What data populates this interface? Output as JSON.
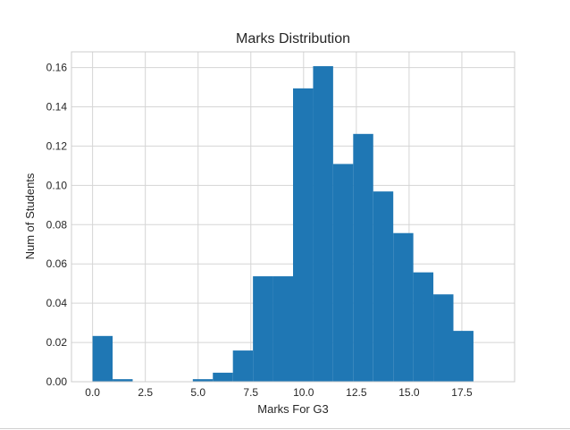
{
  "chart_data": {
    "type": "bar",
    "title": "Marks Distribution",
    "xlabel": "Marks For G3",
    "ylabel": "Num of Students",
    "xlim": [
      -1.0,
      20.0
    ],
    "ylim": [
      0,
      0.168
    ],
    "xticks": [
      0.0,
      2.5,
      5.0,
      7.5,
      10.0,
      12.5,
      15.0,
      17.5
    ],
    "xtick_labels": [
      "0.0",
      "2.5",
      "5.0",
      "7.5",
      "10.0",
      "12.5",
      "15.0",
      "17.5"
    ],
    "yticks": [
      0.0,
      0.02,
      0.04,
      0.06,
      0.08,
      0.1,
      0.12,
      0.14,
      0.16
    ],
    "ytick_labels": [
      "0.00",
      "0.02",
      "0.04",
      "0.06",
      "0.08",
      "0.10",
      "0.12",
      "0.14",
      "0.16"
    ],
    "grid": true,
    "bar_color": "#1f77b4",
    "bins": [
      {
        "x0": 0.0,
        "x1": 0.95,
        "value": 0.0233
      },
      {
        "x0": 0.95,
        "x1": 1.9,
        "value": 0.0013
      },
      {
        "x0": 1.9,
        "x1": 2.85,
        "value": 0.0
      },
      {
        "x0": 2.85,
        "x1": 3.8,
        "value": 0.0
      },
      {
        "x0": 3.8,
        "x1": 4.75,
        "value": 0.0
      },
      {
        "x0": 4.75,
        "x1": 5.7,
        "value": 0.0013
      },
      {
        "x0": 5.7,
        "x1": 6.65,
        "value": 0.0046
      },
      {
        "x0": 6.65,
        "x1": 7.6,
        "value": 0.0159
      },
      {
        "x0": 7.6,
        "x1": 8.55,
        "value": 0.0537
      },
      {
        "x0": 8.55,
        "x1": 9.5,
        "value": 0.0537
      },
      {
        "x0": 9.5,
        "x1": 10.45,
        "value": 0.1494
      },
      {
        "x0": 10.45,
        "x1": 11.4,
        "value": 0.1607
      },
      {
        "x0": 11.4,
        "x1": 12.35,
        "value": 0.1109
      },
      {
        "x0": 12.35,
        "x1": 13.3,
        "value": 0.1262
      },
      {
        "x0": 13.3,
        "x1": 14.25,
        "value": 0.0969
      },
      {
        "x0": 14.25,
        "x1": 15.2,
        "value": 0.0757
      },
      {
        "x0": 15.2,
        "x1": 16.15,
        "value": 0.0557
      },
      {
        "x0": 16.15,
        "x1": 17.1,
        "value": 0.0445
      },
      {
        "x0": 17.1,
        "x1": 18.05,
        "value": 0.0259
      }
    ]
  }
}
